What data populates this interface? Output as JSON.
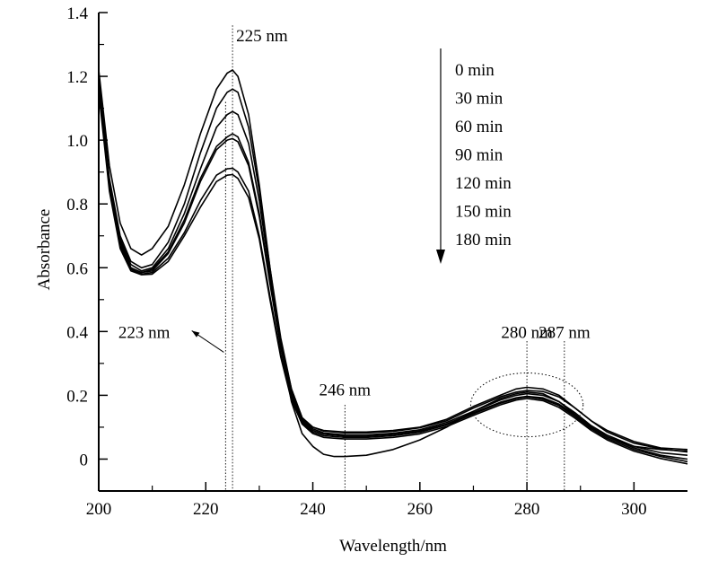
{
  "chart_data": {
    "type": "line",
    "xlabel": "Wavelength/nm",
    "ylabel": "Absorbance",
    "xlim": [
      200,
      310
    ],
    "ylim": [
      -0.1,
      1.4
    ],
    "xticks": [
      "200",
      "220",
      "240",
      "260",
      "280",
      "300"
    ],
    "yticks": [
      "0",
      "0.2",
      "0.4",
      "0.6",
      "0.8",
      "1.0",
      "1.2",
      "1.4"
    ],
    "grid": false,
    "legend_position": "top-right",
    "legend_arrow": "downward",
    "series": [
      {
        "name": "0 min",
        "points": [
          [
            200,
            1.22
          ],
          [
            202,
            0.92
          ],
          [
            204,
            0.74
          ],
          [
            206,
            0.66
          ],
          [
            208,
            0.64
          ],
          [
            210,
            0.66
          ],
          [
            213,
            0.73
          ],
          [
            216,
            0.86
          ],
          [
            219,
            1.02
          ],
          [
            222,
            1.16
          ],
          [
            224,
            1.21
          ],
          [
            225,
            1.22
          ],
          [
            226,
            1.2
          ],
          [
            228,
            1.08
          ],
          [
            230,
            0.86
          ],
          [
            232,
            0.6
          ],
          [
            234,
            0.36
          ],
          [
            236,
            0.18
          ],
          [
            238,
            0.08
          ],
          [
            240,
            0.04
          ],
          [
            242,
            0.015
          ],
          [
            244,
            0.008
          ],
          [
            246,
            0.008
          ],
          [
            250,
            0.012
          ],
          [
            255,
            0.03
          ],
          [
            260,
            0.06
          ],
          [
            265,
            0.1
          ],
          [
            270,
            0.15
          ],
          [
            275,
            0.19
          ],
          [
            278,
            0.205
          ],
          [
            280,
            0.21
          ],
          [
            283,
            0.205
          ],
          [
            286,
            0.18
          ],
          [
            289,
            0.14
          ],
          [
            292,
            0.1
          ],
          [
            295,
            0.07
          ],
          [
            300,
            0.04
          ],
          [
            305,
            0.03
          ],
          [
            310,
            0.025
          ]
        ]
      },
      {
        "name": "30 min",
        "points": [
          [
            200,
            1.2
          ],
          [
            202,
            0.88
          ],
          [
            204,
            0.7
          ],
          [
            206,
            0.62
          ],
          [
            208,
            0.6
          ],
          [
            210,
            0.61
          ],
          [
            213,
            0.68
          ],
          [
            216,
            0.8
          ],
          [
            219,
            0.96
          ],
          [
            222,
            1.1
          ],
          [
            224,
            1.15
          ],
          [
            225,
            1.16
          ],
          [
            226,
            1.15
          ],
          [
            228,
            1.04
          ],
          [
            230,
            0.84
          ],
          [
            232,
            0.6
          ],
          [
            234,
            0.38
          ],
          [
            236,
            0.22
          ],
          [
            238,
            0.13
          ],
          [
            240,
            0.1
          ],
          [
            242,
            0.09
          ],
          [
            246,
            0.085
          ],
          [
            250,
            0.085
          ],
          [
            255,
            0.09
          ],
          [
            260,
            0.1
          ],
          [
            265,
            0.125
          ],
          [
            270,
            0.165
          ],
          [
            275,
            0.2
          ],
          [
            278,
            0.22
          ],
          [
            280,
            0.225
          ],
          [
            283,
            0.22
          ],
          [
            286,
            0.2
          ],
          [
            289,
            0.16
          ],
          [
            292,
            0.12
          ],
          [
            295,
            0.09
          ],
          [
            300,
            0.055
          ],
          [
            305,
            0.035
          ],
          [
            310,
            0.03
          ]
        ]
      },
      {
        "name": "60 min",
        "points": [
          [
            200,
            1.19
          ],
          [
            202,
            0.87
          ],
          [
            204,
            0.69
          ],
          [
            206,
            0.61
          ],
          [
            208,
            0.59
          ],
          [
            210,
            0.6
          ],
          [
            213,
            0.66
          ],
          [
            216,
            0.77
          ],
          [
            219,
            0.91
          ],
          [
            222,
            1.04
          ],
          [
            224,
            1.08
          ],
          [
            225,
            1.09
          ],
          [
            226,
            1.08
          ],
          [
            228,
            0.99
          ],
          [
            230,
            0.81
          ],
          [
            232,
            0.58
          ],
          [
            234,
            0.37
          ],
          [
            236,
            0.22
          ],
          [
            238,
            0.13
          ],
          [
            240,
            0.1
          ],
          [
            242,
            0.088
          ],
          [
            246,
            0.082
          ],
          [
            250,
            0.082
          ],
          [
            255,
            0.087
          ],
          [
            260,
            0.098
          ],
          [
            265,
            0.12
          ],
          [
            270,
            0.16
          ],
          [
            275,
            0.195
          ],
          [
            278,
            0.21
          ],
          [
            280,
            0.215
          ],
          [
            283,
            0.212
          ],
          [
            286,
            0.195
          ],
          [
            289,
            0.16
          ],
          [
            292,
            0.12
          ],
          [
            295,
            0.085
          ],
          [
            300,
            0.05
          ],
          [
            305,
            0.032
          ],
          [
            310,
            0.022
          ]
        ]
      },
      {
        "name": "90 min",
        "points": [
          [
            200,
            1.18
          ],
          [
            202,
            0.86
          ],
          [
            204,
            0.68
          ],
          [
            206,
            0.6
          ],
          [
            208,
            0.585
          ],
          [
            210,
            0.595
          ],
          [
            213,
            0.65
          ],
          [
            216,
            0.75
          ],
          [
            219,
            0.88
          ],
          [
            222,
            0.98
          ],
          [
            224,
            1.01
          ],
          [
            225,
            1.02
          ],
          [
            226,
            1.01
          ],
          [
            228,
            0.93
          ],
          [
            230,
            0.77
          ],
          [
            232,
            0.56
          ],
          [
            234,
            0.36
          ],
          [
            236,
            0.21
          ],
          [
            238,
            0.125
          ],
          [
            240,
            0.095
          ],
          [
            242,
            0.082
          ],
          [
            246,
            0.076
          ],
          [
            250,
            0.076
          ],
          [
            255,
            0.081
          ],
          [
            260,
            0.092
          ],
          [
            265,
            0.115
          ],
          [
            270,
            0.15
          ],
          [
            275,
            0.185
          ],
          [
            278,
            0.2
          ],
          [
            280,
            0.205
          ],
          [
            283,
            0.2
          ],
          [
            286,
            0.18
          ],
          [
            289,
            0.145
          ],
          [
            292,
            0.105
          ],
          [
            295,
            0.075
          ],
          [
            300,
            0.04
          ],
          [
            305,
            0.02
          ],
          [
            310,
            0.012
          ]
        ]
      },
      {
        "name": "120 min",
        "points": [
          [
            200,
            1.17
          ],
          [
            202,
            0.86
          ],
          [
            204,
            0.68
          ],
          [
            206,
            0.6
          ],
          [
            208,
            0.585
          ],
          [
            210,
            0.59
          ],
          [
            213,
            0.645
          ],
          [
            216,
            0.74
          ],
          [
            219,
            0.87
          ],
          [
            222,
            0.97
          ],
          [
            224,
            1.0
          ],
          [
            225,
            1.005
          ],
          [
            226,
            0.995
          ],
          [
            228,
            0.92
          ],
          [
            230,
            0.76
          ],
          [
            232,
            0.55
          ],
          [
            234,
            0.35
          ],
          [
            236,
            0.2
          ],
          [
            238,
            0.12
          ],
          [
            240,
            0.09
          ],
          [
            242,
            0.078
          ],
          [
            246,
            0.072
          ],
          [
            250,
            0.072
          ],
          [
            255,
            0.077
          ],
          [
            260,
            0.088
          ],
          [
            265,
            0.11
          ],
          [
            270,
            0.145
          ],
          [
            275,
            0.178
          ],
          [
            278,
            0.192
          ],
          [
            280,
            0.197
          ],
          [
            283,
            0.192
          ],
          [
            286,
            0.172
          ],
          [
            289,
            0.138
          ],
          [
            292,
            0.1
          ],
          [
            295,
            0.07
          ],
          [
            300,
            0.035
          ],
          [
            305,
            0.012
          ],
          [
            310,
            0.0
          ]
        ]
      },
      {
        "name": "150 min",
        "points": [
          [
            200,
            1.16
          ],
          [
            202,
            0.85
          ],
          [
            204,
            0.67
          ],
          [
            206,
            0.595
          ],
          [
            208,
            0.58
          ],
          [
            210,
            0.585
          ],
          [
            213,
            0.63
          ],
          [
            216,
            0.71
          ],
          [
            219,
            0.81
          ],
          [
            222,
            0.89
          ],
          [
            224,
            0.91
          ],
          [
            225,
            0.912
          ],
          [
            226,
            0.9
          ],
          [
            228,
            0.84
          ],
          [
            230,
            0.7
          ],
          [
            232,
            0.51
          ],
          [
            234,
            0.33
          ],
          [
            236,
            0.19
          ],
          [
            238,
            0.115
          ],
          [
            240,
            0.085
          ],
          [
            242,
            0.073
          ],
          [
            246,
            0.068
          ],
          [
            250,
            0.068
          ],
          [
            255,
            0.073
          ],
          [
            260,
            0.084
          ],
          [
            265,
            0.107
          ],
          [
            270,
            0.142
          ],
          [
            275,
            0.175
          ],
          [
            278,
            0.19
          ],
          [
            280,
            0.195
          ],
          [
            283,
            0.188
          ],
          [
            286,
            0.168
          ],
          [
            289,
            0.133
          ],
          [
            292,
            0.095
          ],
          [
            295,
            0.065
          ],
          [
            300,
            0.03
          ],
          [
            305,
            0.008
          ],
          [
            310,
            -0.008
          ]
        ]
      },
      {
        "name": "180 min",
        "points": [
          [
            200,
            1.15
          ],
          [
            202,
            0.84
          ],
          [
            204,
            0.66
          ],
          [
            206,
            0.59
          ],
          [
            208,
            0.578
          ],
          [
            210,
            0.58
          ],
          [
            213,
            0.62
          ],
          [
            216,
            0.7
          ],
          [
            219,
            0.79
          ],
          [
            222,
            0.87
          ],
          [
            224,
            0.89
          ],
          [
            225,
            0.892
          ],
          [
            226,
            0.88
          ],
          [
            228,
            0.82
          ],
          [
            230,
            0.69
          ],
          [
            232,
            0.5
          ],
          [
            234,
            0.32
          ],
          [
            236,
            0.185
          ],
          [
            238,
            0.11
          ],
          [
            240,
            0.08
          ],
          [
            242,
            0.068
          ],
          [
            246,
            0.063
          ],
          [
            250,
            0.063
          ],
          [
            255,
            0.068
          ],
          [
            260,
            0.079
          ],
          [
            265,
            0.102
          ],
          [
            270,
            0.137
          ],
          [
            275,
            0.17
          ],
          [
            278,
            0.185
          ],
          [
            280,
            0.19
          ],
          [
            283,
            0.183
          ],
          [
            286,
            0.162
          ],
          [
            289,
            0.128
          ],
          [
            292,
            0.09
          ],
          [
            295,
            0.06
          ],
          [
            300,
            0.025
          ],
          [
            305,
            0.002
          ],
          [
            310,
            -0.015
          ]
        ]
      }
    ],
    "reference_lines": [
      {
        "x": 223.7
      },
      {
        "x": 225
      },
      {
        "x": 246
      },
      {
        "x": 280
      },
      {
        "x": 287
      }
    ],
    "annotations": [
      {
        "text": "225 nm",
        "x": 225,
        "y": 1.31
      },
      {
        "text": "223 nm",
        "x": 208.5,
        "y": 0.38,
        "arrow_to": [
          223.7,
          0.335
        ]
      },
      {
        "text": "246 nm",
        "x": 246,
        "y": 0.2
      },
      {
        "text": "280 nm",
        "x": 280,
        "y": 0.38
      },
      {
        "text": "287 nm",
        "x": 287,
        "y": 0.38
      }
    ],
    "highlight_ellipse": {
      "x_range": [
        269.5,
        290.5
      ],
      "y_range": [
        0.07,
        0.27
      ]
    }
  }
}
